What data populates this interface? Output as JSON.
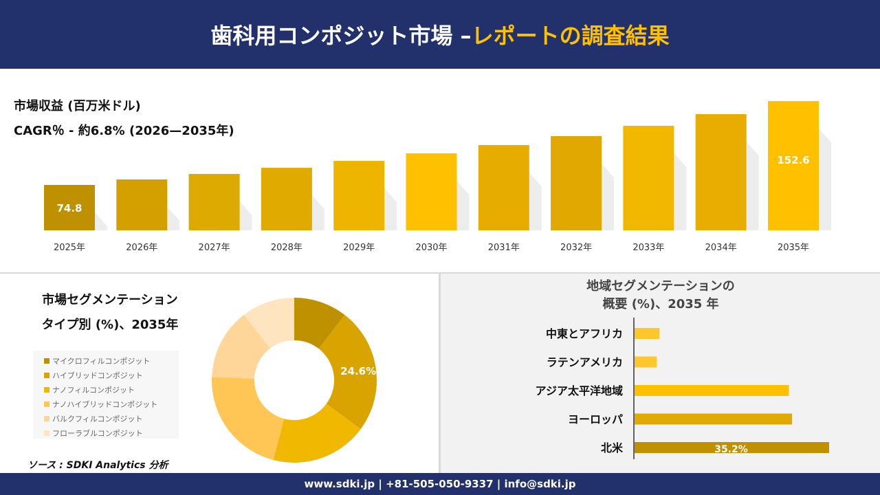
{
  "header": {
    "title_main": "歯科用コンポジット市場 –",
    "title_accent": "レポートの調査結果"
  },
  "footer": {
    "contact": "www.sdki.jp | +81-505-050-9337 | info@sdki.jp"
  },
  "source": "ソース : SDKI Analytics 分析",
  "chart_data": [
    {
      "type": "bar",
      "title": "市場収益 (百万米ドル)",
      "subtitle": "CAGR％ - 約6.8% (2026—2035年)",
      "categories": [
        "2025年",
        "2026年",
        "2027年",
        "2028年",
        "2029年",
        "2030年",
        "2031年",
        "2032年",
        "2033年",
        "2034年",
        "2035年"
      ],
      "values": [
        74.8,
        79.9,
        85.0,
        90.7,
        97.1,
        104.1,
        111.8,
        120.1,
        129.7,
        140.5,
        152.6
      ],
      "data_labels": {
        "0": "74.8",
        "10": "152.6"
      },
      "colors": [
        "#bf9000",
        "#d4a000",
        "#dcaa00",
        "#e0aa00",
        "#eeb500",
        "#ffc000",
        "#e6ad00",
        "#e0a800",
        "#f2b800",
        "#e8ad00",
        "#ffc000"
      ]
    },
    {
      "type": "pie",
      "title": "市場セグメンテーション",
      "subtitle": "タイプ別 (%)、2035年",
      "categories": [
        "マイクロフィルコンポジット",
        "ハイブリッドコンポジット",
        "ナノフィルコンポジット",
        "ナノハイブリッドコンポジット",
        "バルクフィルコンポジット",
        "フローラブルコンポジット"
      ],
      "values": [
        10.5,
        24.6,
        19.0,
        21.5,
        14.0,
        10.4
      ],
      "data_labels": {
        "1": "24.6%"
      },
      "colors": [
        "#bf9000",
        "#d9a300",
        "#f0b800",
        "#ffc655",
        "#ffd699",
        "#ffe4c0"
      ]
    },
    {
      "type": "bar",
      "orientation": "horizontal",
      "title": "地域セグメンテーションの\n概要 (%)、2035 年",
      "categories": [
        "中東とアフリカ",
        "ラテンアメリカ",
        "アジア太平洋地域",
        "ヨーロッパ",
        "北米"
      ],
      "values": [
        4.5,
        4.0,
        27.9,
        28.5,
        35.2
      ],
      "data_labels": {
        "4": "35.2%"
      },
      "colors": [
        "#ffc72c",
        "#ffc72c",
        "#ffc000",
        "#e0aa00",
        "#bf9000"
      ]
    }
  ]
}
